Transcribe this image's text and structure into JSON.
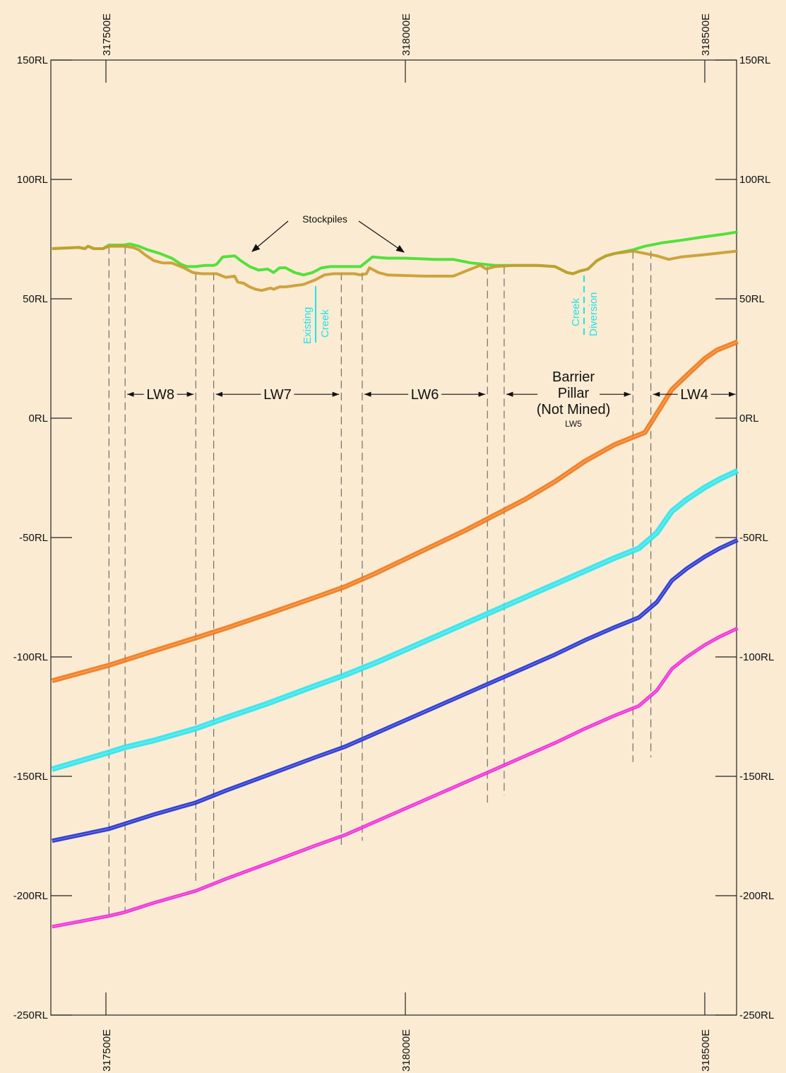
{
  "chart_data": {
    "type": "line",
    "x_axis": {
      "ticks": [
        317500,
        318000,
        318500
      ],
      "tick_labels": [
        "317500E",
        "318000E",
        "318500E"
      ]
    },
    "y_axis": {
      "range": [
        -250,
        150
      ],
      "ticks": [
        150,
        100,
        50,
        0,
        -50,
        -100,
        -150,
        -200,
        -250
      ],
      "tick_labels": [
        "150RL",
        "100RL",
        "50RL",
        "0RL",
        "-50RL",
        "-100RL",
        "-150RL",
        "-200RL",
        "-250RL"
      ]
    },
    "series": [
      {
        "key": "surface-upper",
        "color": "#3fe02a",
        "width": 4,
        "points": [
          [
            317410,
            71
          ],
          [
            317455,
            71.5
          ],
          [
            317465,
            71
          ],
          [
            317470,
            72
          ],
          [
            317480,
            71
          ],
          [
            317495,
            71
          ],
          [
            317505,
            72.5
          ],
          [
            317530,
            72.5
          ],
          [
            317540,
            73
          ],
          [
            317555,
            72
          ],
          [
            317570,
            70.5
          ],
          [
            317590,
            69
          ],
          [
            317610,
            67
          ],
          [
            317625,
            64.5
          ],
          [
            317635,
            63.5
          ],
          [
            317650,
            63.5
          ],
          [
            317665,
            64
          ],
          [
            317680,
            64
          ],
          [
            317685,
            64.5
          ],
          [
            317695,
            67.5
          ],
          [
            317715,
            68
          ],
          [
            317725,
            66
          ],
          [
            317740,
            63.5
          ],
          [
            317755,
            62
          ],
          [
            317770,
            62.5
          ],
          [
            317780,
            61
          ],
          [
            317790,
            63
          ],
          [
            317800,
            63
          ],
          [
            317815,
            61
          ],
          [
            317830,
            60
          ],
          [
            317845,
            61
          ],
          [
            317860,
            63
          ],
          [
            317875,
            63.5
          ],
          [
            317900,
            63.5
          ],
          [
            317915,
            63.5
          ],
          [
            317925,
            63.5
          ],
          [
            317945,
            67.5
          ],
          [
            317970,
            67
          ],
          [
            318000,
            67
          ],
          [
            318050,
            66.5
          ],
          [
            318060,
            66.5
          ],
          [
            318080,
            66.5
          ],
          [
            318090,
            66
          ],
          [
            318110,
            65
          ],
          [
            318130,
            64.5
          ],
          [
            318150,
            64
          ],
          [
            318180,
            64
          ],
          [
            318220,
            64
          ],
          [
            318250,
            63.5
          ],
          [
            318270,
            61
          ],
          [
            318280,
            60.5
          ],
          [
            318290,
            61.5
          ],
          [
            318305,
            62.5
          ],
          [
            318320,
            66
          ],
          [
            318335,
            68
          ],
          [
            318350,
            69
          ],
          [
            318370,
            70
          ],
          [
            318380,
            70.5
          ],
          [
            318400,
            72
          ],
          [
            318430,
            73.5
          ],
          [
            318460,
            74.5
          ],
          [
            318500,
            76
          ],
          [
            318530,
            77
          ],
          [
            318555,
            78
          ]
        ]
      },
      {
        "key": "surface-lower",
        "color": "#c99a2e",
        "width": 4,
        "points": [
          [
            317410,
            71
          ],
          [
            317455,
            71.5
          ],
          [
            317465,
            71
          ],
          [
            317470,
            72
          ],
          [
            317480,
            71
          ],
          [
            317495,
            71
          ],
          [
            317505,
            72
          ],
          [
            317530,
            72
          ],
          [
            317545,
            71.5
          ],
          [
            317555,
            70.5
          ],
          [
            317565,
            68.5
          ],
          [
            317580,
            66
          ],
          [
            317595,
            65
          ],
          [
            317610,
            65
          ],
          [
            317630,
            63
          ],
          [
            317645,
            61
          ],
          [
            317660,
            60.5
          ],
          [
            317685,
            60.5
          ],
          [
            317700,
            59
          ],
          [
            317715,
            59.5
          ],
          [
            317720,
            57
          ],
          [
            317730,
            56.5
          ],
          [
            317740,
            55
          ],
          [
            317750,
            54
          ],
          [
            317760,
            53.5
          ],
          [
            317775,
            54.5
          ],
          [
            317780,
            54
          ],
          [
            317790,
            55
          ],
          [
            317800,
            55
          ],
          [
            317815,
            55.5
          ],
          [
            317830,
            56
          ],
          [
            317850,
            58
          ],
          [
            317865,
            60
          ],
          [
            317880,
            60.5
          ],
          [
            317915,
            60.5
          ],
          [
            317925,
            60
          ],
          [
            317935,
            60.5
          ],
          [
            317940,
            63
          ],
          [
            317955,
            61
          ],
          [
            317970,
            60
          ],
          [
            318030,
            59.5
          ],
          [
            318080,
            59.5
          ],
          [
            318105,
            62
          ],
          [
            318125,
            64
          ],
          [
            318135,
            62.5
          ],
          [
            318150,
            63.5
          ],
          [
            318180,
            64
          ],
          [
            318220,
            64
          ],
          [
            318250,
            63.5
          ],
          [
            318270,
            61
          ],
          [
            318280,
            60.5
          ],
          [
            318290,
            61.5
          ],
          [
            318305,
            62.5
          ],
          [
            318320,
            66
          ],
          [
            318335,
            68
          ],
          [
            318350,
            69
          ],
          [
            318365,
            69.5
          ],
          [
            318380,
            70
          ],
          [
            318400,
            69
          ],
          [
            318420,
            68
          ],
          [
            318440,
            66.5
          ],
          [
            318460,
            67.5
          ],
          [
            318500,
            68.5
          ],
          [
            318555,
            70
          ]
        ]
      },
      {
        "key": "seam-orange",
        "color": "#f07818",
        "width": 7,
        "points": [
          [
            317410,
            -110
          ],
          [
            317505,
            -103.5
          ],
          [
            317530,
            -101.5
          ],
          [
            317580,
            -97.5
          ],
          [
            317650,
            -92
          ],
          [
            317700,
            -88
          ],
          [
            317770,
            -82
          ],
          [
            317850,
            -75
          ],
          [
            317900,
            -70.5
          ],
          [
            317950,
            -65
          ],
          [
            318000,
            -59
          ],
          [
            318050,
            -53
          ],
          [
            318100,
            -47
          ],
          [
            318150,
            -40.5
          ],
          [
            318200,
            -34
          ],
          [
            318250,
            -26.5
          ],
          [
            318300,
            -18
          ],
          [
            318350,
            -11
          ],
          [
            318380,
            -8
          ],
          [
            318400,
            -6
          ],
          [
            318420,
            2
          ],
          [
            318445,
            12
          ],
          [
            318470,
            18
          ],
          [
            318500,
            25
          ],
          [
            318520,
            28.5
          ],
          [
            318555,
            32
          ],
          [
            318560,
            -5
          ]
        ]
      },
      {
        "key": "seam-cyan",
        "color": "#2ce6ee",
        "width": 8,
        "points": [
          [
            317410,
            -147
          ],
          [
            317505,
            -140
          ],
          [
            317530,
            -138
          ],
          [
            317580,
            -135
          ],
          [
            317650,
            -130
          ],
          [
            317700,
            -125.5
          ],
          [
            317770,
            -119.5
          ],
          [
            317850,
            -112
          ],
          [
            317900,
            -107.5
          ],
          [
            317950,
            -102.5
          ],
          [
            318000,
            -97
          ],
          [
            318050,
            -91.5
          ],
          [
            318100,
            -86
          ],
          [
            318150,
            -80.5
          ],
          [
            318200,
            -75
          ],
          [
            318250,
            -69.5
          ],
          [
            318300,
            -64
          ],
          [
            318350,
            -58.5
          ],
          [
            318390,
            -54.5
          ],
          [
            318420,
            -48
          ],
          [
            318445,
            -39
          ],
          [
            318470,
            -34
          ],
          [
            318500,
            -29
          ],
          [
            318525,
            -25.5
          ],
          [
            318555,
            -22
          ],
          [
            318560,
            -44
          ]
        ]
      },
      {
        "key": "seam-blue",
        "color": "#1d2fd4",
        "width": 6,
        "points": [
          [
            317410,
            -177
          ],
          [
            317505,
            -172
          ],
          [
            317530,
            -170
          ],
          [
            317580,
            -166
          ],
          [
            317650,
            -161
          ],
          [
            317700,
            -156
          ],
          [
            317770,
            -149.5
          ],
          [
            317850,
            -142
          ],
          [
            317900,
            -137.5
          ],
          [
            317950,
            -132
          ],
          [
            318000,
            -126.5
          ],
          [
            318050,
            -121
          ],
          [
            318100,
            -115.5
          ],
          [
            318150,
            -110
          ],
          [
            318200,
            -104.5
          ],
          [
            318250,
            -99
          ],
          [
            318300,
            -93
          ],
          [
            318350,
            -87.5
          ],
          [
            318390,
            -83.5
          ],
          [
            318420,
            -77
          ],
          [
            318445,
            -68
          ],
          [
            318470,
            -63
          ],
          [
            318500,
            -58
          ],
          [
            318525,
            -54.5
          ],
          [
            318555,
            -51
          ],
          [
            318560,
            -80
          ]
        ]
      },
      {
        "key": "seam-magenta",
        "color": "#ee24d8",
        "width": 5,
        "points": [
          [
            317410,
            -213
          ],
          [
            317505,
            -208.5
          ],
          [
            317530,
            -207
          ],
          [
            317580,
            -203
          ],
          [
            317650,
            -198
          ],
          [
            317700,
            -193
          ],
          [
            317770,
            -186.5
          ],
          [
            317850,
            -179
          ],
          [
            317900,
            -174.5
          ],
          [
            317950,
            -169
          ],
          [
            318000,
            -163.5
          ],
          [
            318050,
            -158
          ],
          [
            318100,
            -152.5
          ],
          [
            318150,
            -147
          ],
          [
            318200,
            -141.5
          ],
          [
            318250,
            -136
          ],
          [
            318300,
            -130
          ],
          [
            318350,
            -124.5
          ],
          [
            318390,
            -120.5
          ],
          [
            318420,
            -114
          ],
          [
            318445,
            -105
          ],
          [
            318470,
            -100
          ],
          [
            318500,
            -95
          ],
          [
            318525,
            -91.5
          ],
          [
            318555,
            -88
          ],
          [
            318560,
            -120
          ]
        ]
      }
    ],
    "panel_lines": [
      {
        "x": 317505,
        "top": 72,
        "bottom": -208
      },
      {
        "x": 317532,
        "top": 72,
        "bottom": -207
      },
      {
        "x": 317650,
        "top": 61,
        "bottom": -195
      },
      {
        "x": 317680,
        "top": 61,
        "bottom": -193
      },
      {
        "x": 317893,
        "top": 61,
        "bottom": -180
      },
      {
        "x": 317928,
        "top": 61,
        "bottom": -177
      },
      {
        "x": 318137,
        "top": 63.5,
        "bottom": -161
      },
      {
        "x": 318165,
        "top": 63.5,
        "bottom": -158
      },
      {
        "x": 318380,
        "top": 70,
        "bottom": -144
      },
      {
        "x": 318410,
        "top": 70,
        "bottom": -142
      }
    ],
    "panels": [
      {
        "key": "lw8",
        "label": "LW8",
        "from": 317532,
        "to": 317650,
        "y": 10
      },
      {
        "key": "lw7",
        "label": "LW7",
        "from": 317680,
        "to": 317893,
        "y": 10
      },
      {
        "key": "lw6",
        "label": "LW6",
        "from": 317928,
        "to": 318137,
        "y": 10
      },
      {
        "key": "barrier",
        "label": "",
        "from": 318165,
        "to": 318380,
        "y": 10
      },
      {
        "key": "lw4",
        "label": "LW4",
        "from": 318410,
        "to": 318555,
        "y": 10
      }
    ],
    "annotations": {
      "stockpiles": "Stockpiles",
      "barrier_line1": "Barrier",
      "barrier_line2": "Pillar",
      "barrier_line3": "(Not Mined)",
      "barrier_sub": "LW5",
      "existing_creek_1": "Existing",
      "existing_creek_2": "Creek",
      "creek_diversion_1": "Creek",
      "creek_diversion_2": "Diversion"
    }
  }
}
